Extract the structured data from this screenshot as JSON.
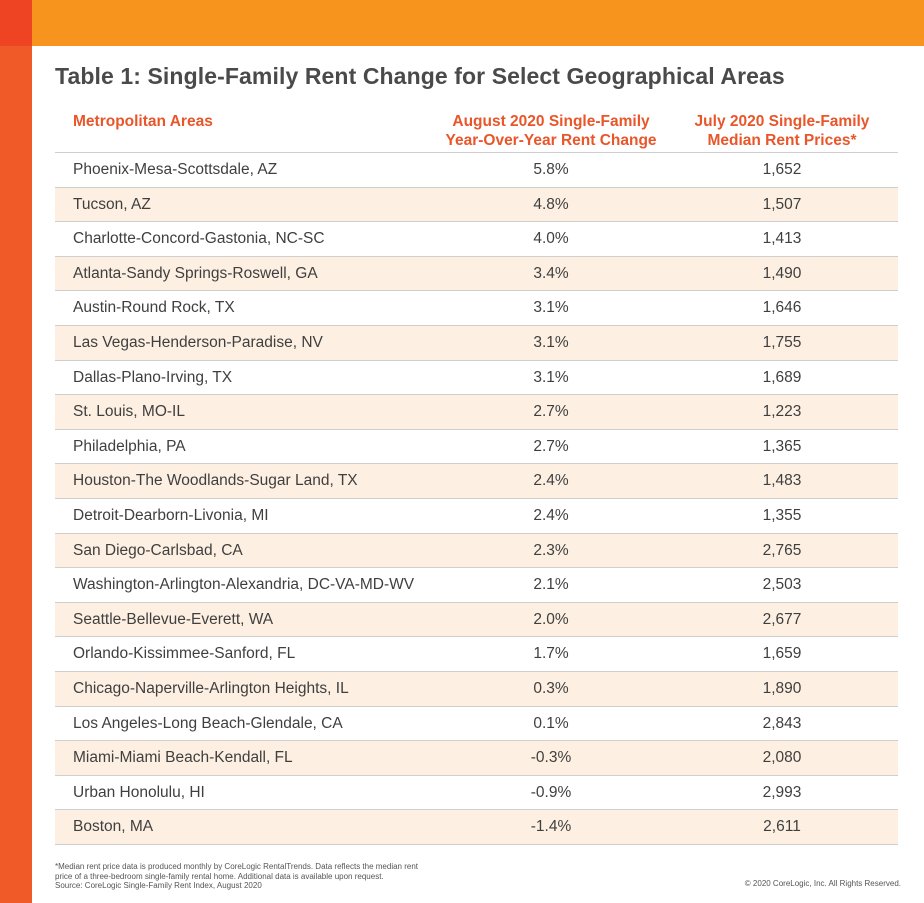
{
  "title": "Table 1: Single-Family Rent Change for Select Geographical Areas",
  "table": {
    "headers": {
      "metro": "Metropolitan Areas",
      "change_line1": "August 2020 Single-Family",
      "change_line2": "Year-Over-Year Rent Change",
      "price_line1": "July 2020 Single-Family",
      "price_line2": "Median Rent Prices*"
    },
    "rows": [
      {
        "metro": "Phoenix-Mesa-Scottsdale, AZ",
        "change": "5.8%",
        "price": "1,652"
      },
      {
        "metro": "Tucson, AZ",
        "change": "4.8%",
        "price": "1,507"
      },
      {
        "metro": "Charlotte-Concord-Gastonia, NC-SC",
        "change": "4.0%",
        "price": "1,413"
      },
      {
        "metro": "Atlanta-Sandy Springs-Roswell, GA",
        "change": "3.4%",
        "price": "1,490"
      },
      {
        "metro": "Austin-Round Rock, TX",
        "change": "3.1%",
        "price": "1,646"
      },
      {
        "metro": "Las Vegas-Henderson-Paradise, NV",
        "change": "3.1%",
        "price": "1,755"
      },
      {
        "metro": "Dallas-Plano-Irving, TX",
        "change": "3.1%",
        "price": "1,689"
      },
      {
        "metro": "St. Louis, MO-IL",
        "change": "2.7%",
        "price": "1,223"
      },
      {
        "metro": "Philadelphia, PA",
        "change": "2.7%",
        "price": "1,365"
      },
      {
        "metro": "Houston-The Woodlands-Sugar Land, TX",
        "change": "2.4%",
        "price": "1,483"
      },
      {
        "metro": "Detroit-Dearborn-Livonia, MI",
        "change": "2.4%",
        "price": "1,355"
      },
      {
        "metro": "San Diego-Carlsbad, CA",
        "change": "2.3%",
        "price": "2,765"
      },
      {
        "metro": "Washington-Arlington-Alexandria, DC-VA-MD-WV",
        "change": "2.1%",
        "price": "2,503"
      },
      {
        "metro": "Seattle-Bellevue-Everett, WA",
        "change": "2.0%",
        "price": "2,677"
      },
      {
        "metro": "Orlando-Kissimmee-Sanford, FL",
        "change": "1.7%",
        "price": "1,659"
      },
      {
        "metro": "Chicago-Naperville-Arlington Heights, IL",
        "change": "0.3%",
        "price": "1,890"
      },
      {
        "metro": "Los Angeles-Long Beach-Glendale, CA",
        "change": "0.1%",
        "price": "2,843"
      },
      {
        "metro": "Miami-Miami Beach-Kendall, FL",
        "change": "-0.3%",
        "price": "2,080"
      },
      {
        "metro": "Urban Honolulu, HI",
        "change": "-0.9%",
        "price": "2,993"
      },
      {
        "metro": "Boston, MA",
        "change": "-1.4%",
        "price": "2,611"
      }
    ]
  },
  "footnote": {
    "line1": "*Median rent price data is produced monthly by CoreLogic RentalTrends. Data reflects the median rent",
    "line2": "price of a three-bedroom single-family rental home. Additional data is available upon request.",
    "line3": "Source: CoreLogic Single-Family Rent Index, August 2020"
  },
  "copyright": "© 2020 CoreLogic, Inc. All Rights Reserved.",
  "colors": {
    "accent_orange": "#f7941d",
    "accent_red": "#f05a28",
    "header_text": "#e8562a",
    "alt_row": "#fdf0e2"
  }
}
